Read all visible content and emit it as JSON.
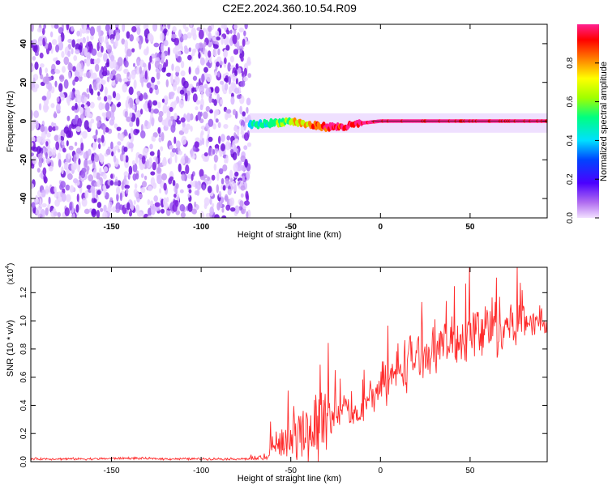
{
  "title": "C2E2.2024.360.10.54.R09",
  "colors": {
    "snr_line": "#ff2a2a",
    "spectrogram_noise": "#8a2be2",
    "axis": "#000000"
  },
  "chart_data": [
    {
      "type": "heatmap",
      "name": "spectrogram",
      "xlabel": "Height of straight line (km)",
      "ylabel": "Frequency (Hz)",
      "xlim": [
        -195,
        93
      ],
      "ylim": [
        -50,
        50
      ],
      "x_ticks": [
        -150,
        -100,
        -50,
        0,
        50
      ],
      "x_tick_labels": [
        "-150",
        "-100",
        "-50",
        "0",
        "50"
      ],
      "y_ticks": [
        -40,
        -20,
        0,
        20,
        40
      ],
      "y_tick_labels": [
        "-40",
        "-20",
        "0",
        "20",
        "40"
      ],
      "noise_region_x": [
        -195,
        -73
      ],
      "signal_track": {
        "x": [
          -73,
          -60,
          -50,
          -40,
          -30,
          -20,
          -10,
          0,
          10,
          20,
          50,
          93
        ],
        "freq": [
          -2,
          -1,
          0,
          -2,
          -3,
          -3,
          -1,
          0,
          0,
          0,
          0,
          0
        ],
        "amplitude": [
          0.35,
          0.4,
          0.5,
          0.7,
          0.85,
          0.9,
          0.95,
          1.0,
          1.0,
          1.0,
          1.0,
          1.0
        ]
      },
      "colorbar": {
        "label": "Normalized spectral amplitude",
        "range": [
          0,
          1
        ],
        "ticks": [
          0.0,
          0.2,
          0.4,
          0.6,
          0.8
        ],
        "tick_labels": [
          "0.0",
          "0.2",
          "0.4",
          "0.6",
          "0.8"
        ]
      }
    },
    {
      "type": "line",
      "name": "snr",
      "xlabel": "Height of straight line (km)",
      "ylabel": "SNR (10 * v/v)",
      "y_scale_label": "(x10",
      "y_scale_exp": "4",
      "xlim": [
        -195,
        93
      ],
      "ylim": [
        0,
        1.38
      ],
      "x_ticks": [
        -150,
        -100,
        -50,
        0,
        50
      ],
      "x_tick_labels": [
        "-150",
        "-100",
        "-50",
        "0",
        "50"
      ],
      "y_ticks": [
        0.0,
        0.2,
        0.4,
        0.6,
        0.8,
        1.0,
        1.2
      ],
      "y_tick_labels": [
        "0.0",
        "0.2",
        "0.4",
        "0.6",
        "0.8",
        "1.0",
        "1.2"
      ],
      "series": [
        {
          "x": [
            -195,
            -180,
            -160,
            -140,
            -120,
            -100,
            -80,
            -73,
            -65,
            -60,
            -55,
            -50,
            -45,
            -40,
            -35,
            -30,
            -25,
            -20,
            -15,
            -10,
            -5,
            0,
            5,
            10,
            15,
            20,
            30,
            40,
            50,
            60,
            70,
            80,
            90,
            93
          ],
          "mean": [
            0.02,
            0.02,
            0.02,
            0.025,
            0.02,
            0.02,
            0.02,
            0.02,
            0.03,
            0.12,
            0.15,
            0.16,
            0.2,
            0.22,
            0.28,
            0.3,
            0.35,
            0.4,
            0.32,
            0.38,
            0.45,
            0.52,
            0.58,
            0.65,
            0.72,
            0.75,
            0.8,
            0.85,
            0.9,
            0.95,
            0.98,
            1.0,
            1.0,
            0.95
          ],
          "spread": [
            0.01,
            0.01,
            0.01,
            0.01,
            0.01,
            0.01,
            0.01,
            0.01,
            0.04,
            0.12,
            0.15,
            0.14,
            0.25,
            0.3,
            0.35,
            0.3,
            0.15,
            0.1,
            0.1,
            0.12,
            0.15,
            0.15,
            0.2,
            0.25,
            0.25,
            0.2,
            0.18,
            0.2,
            0.25,
            0.3,
            0.25,
            0.15,
            0.1,
            0.1
          ]
        }
      ]
    }
  ]
}
